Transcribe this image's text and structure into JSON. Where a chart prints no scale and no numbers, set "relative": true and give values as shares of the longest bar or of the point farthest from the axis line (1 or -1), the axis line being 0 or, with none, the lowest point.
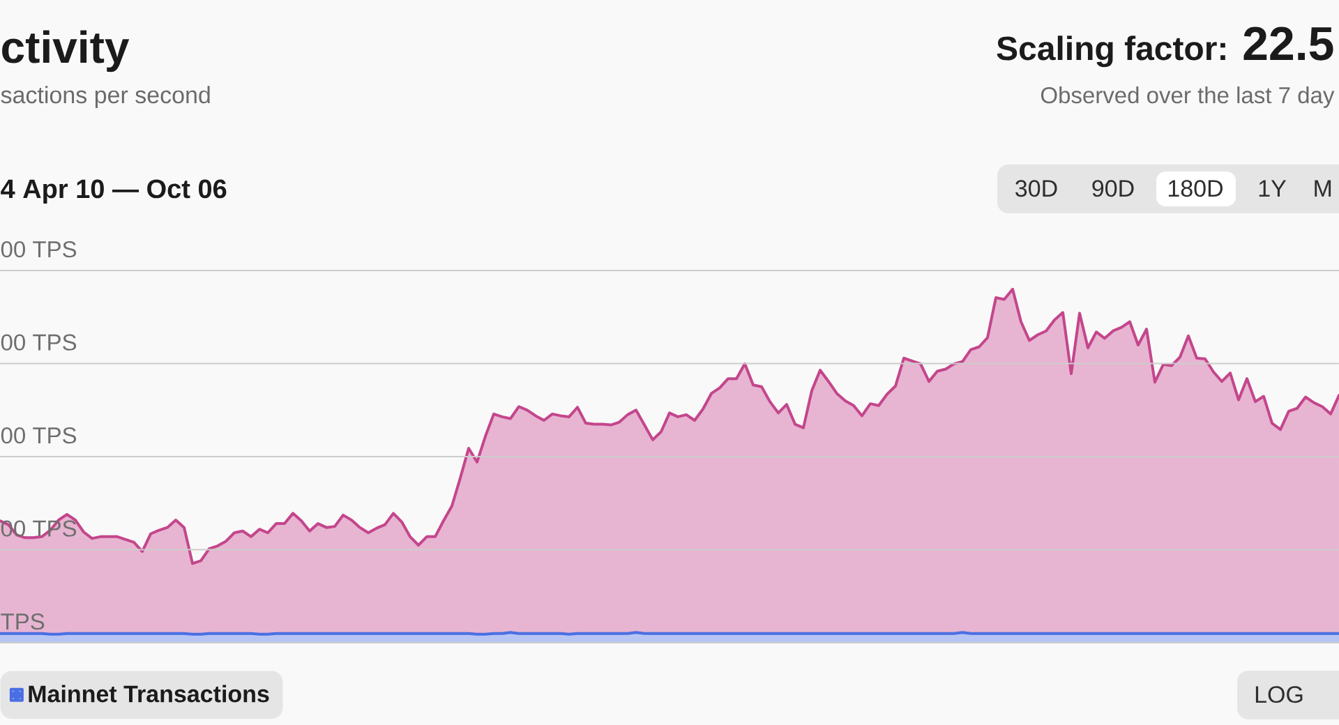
{
  "chart_data": {
    "type": "area",
    "title": "ctivity",
    "subtitle": "sactions per second",
    "annotations": [
      "4 Apr 10 — Oct 06",
      "Scaling factor:",
      "22.5",
      "Observed over the last 7 day",
      "30D",
      "90D",
      "180D",
      "1Y",
      "M",
      "LOG",
      "00 TPS",
      "00 TPS",
      "00 TPS",
      "00 TPS",
      "TPS"
    ],
    "relative": true,
    "categories": [
      null,
      null,
      null,
      null,
      null,
      null,
      null,
      null,
      null,
      null,
      null,
      null,
      null,
      null,
      null,
      null,
      null,
      null,
      null,
      null,
      null,
      null,
      null,
      null,
      null,
      null,
      null,
      null,
      null,
      null,
      null,
      null,
      null,
      null,
      null,
      null,
      null,
      null,
      null,
      null,
      null,
      null,
      null,
      null,
      null,
      null,
      null,
      null,
      null,
      null,
      null,
      null,
      null,
      null,
      null,
      null,
      null,
      null,
      null,
      null,
      null,
      null,
      null,
      null,
      null,
      null,
      null,
      null,
      null,
      null,
      null,
      null,
      null,
      null,
      null,
      null,
      null,
      null,
      null,
      null,
      null,
      null,
      null,
      null,
      null,
      null,
      null,
      null,
      null,
      null,
      null,
      null,
      null,
      null,
      null,
      null,
      null,
      null,
      null,
      null,
      null,
      null,
      null,
      null,
      null,
      null,
      null,
      null,
      null,
      null,
      null,
      null,
      null,
      null,
      null,
      null,
      null,
      null,
      null,
      null,
      null,
      null,
      null,
      null,
      null,
      null,
      null,
      null,
      null,
      null,
      null,
      null,
      null,
      null,
      null,
      null,
      null,
      null,
      null,
      null,
      null,
      null,
      null,
      null,
      null,
      null,
      null,
      null,
      null,
      null,
      null,
      null,
      null,
      null,
      null,
      null,
      null,
      null,
      null,
      null,
      null
    ],
    "series": [
      {
        "color": "#c4468c",
        "values": [
          0.345,
          0.334,
          0.305,
          0.297,
          0.297,
          0.3,
          0.318,
          0.347,
          0.363,
          0.347,
          0.313,
          0.295,
          0.3,
          0.3,
          0.3,
          0.292,
          0.284,
          0.258,
          0.308,
          0.318,
          0.326,
          0.347,
          0.326,
          0.224,
          0.232,
          0.266,
          0.274,
          0.287,
          0.311,
          0.316,
          0.3,
          0.321,
          0.311,
          0.337,
          0.337,
          0.366,
          0.345,
          0.316,
          0.337,
          0.326,
          0.329,
          0.361,
          0.347,
          0.326,
          0.311,
          0.324,
          0.334,
          0.366,
          0.342,
          0.3,
          0.276,
          0.3,
          0.3,
          0.345,
          0.387,
          0.466,
          0.55,
          0.511,
          0.584,
          0.647,
          0.639,
          0.634,
          0.668,
          0.658,
          0.642,
          0.629,
          0.647,
          0.642,
          0.639,
          0.666,
          0.621,
          0.618,
          0.618,
          0.616,
          0.624,
          0.645,
          0.658,
          0.616,
          0.574,
          0.597,
          0.65,
          0.639,
          0.645,
          0.629,
          0.661,
          0.705,
          0.721,
          0.747,
          0.747,
          0.789,
          0.729,
          0.724,
          0.682,
          0.65,
          0.674,
          0.618,
          0.608,
          0.713,
          0.771,
          0.739,
          0.705,
          0.684,
          0.671,
          0.642,
          0.676,
          0.671,
          0.703,
          0.726,
          0.805,
          0.797,
          0.789,
          0.739,
          0.768,
          0.774,
          0.789,
          0.795,
          0.829,
          0.837,
          0.863,
          0.976,
          0.971,
          1,
          0.908,
          0.855,
          0.871,
          0.882,
          0.913,
          0.934,
          0.761,
          0.932,
          0.834,
          0.879,
          0.861,
          0.882,
          0.892,
          0.908,
          0.842,
          0.887,
          0.737,
          0.787,
          0.784,
          0.808,
          0.868,
          0.805,
          0.803,
          0.766,
          0.739,
          0.763,
          0.687,
          0.747,
          0.682,
          0.697,
          0.621,
          0.603,
          0.655,
          0.663,
          0.695,
          0.679,
          0.668,
          0.647,
          0.7
        ]
      },
      {
        "name": "Mainnet Transactions",
        "color": "#4a6fe3",
        "values": [
          0.026,
          0.026,
          0.026,
          0.026,
          0.026,
          0.026,
          0.024,
          0.024,
          0.026,
          0.026,
          0.026,
          0.026,
          0.026,
          0.026,
          0.026,
          0.026,
          0.026,
          0.026,
          0.026,
          0.026,
          0.026,
          0.026,
          0.026,
          0.024,
          0.024,
          0.026,
          0.026,
          0.026,
          0.026,
          0.026,
          0.026,
          0.024,
          0.024,
          0.026,
          0.026,
          0.026,
          0.026,
          0.026,
          0.026,
          0.026,
          0.026,
          0.026,
          0.026,
          0.026,
          0.026,
          0.026,
          0.026,
          0.026,
          0.026,
          0.026,
          0.026,
          0.026,
          0.026,
          0.026,
          0.026,
          0.026,
          0.026,
          0.024,
          0.024,
          0.026,
          0.026,
          0.029,
          0.026,
          0.026,
          0.026,
          0.026,
          0.026,
          0.026,
          0.024,
          0.026,
          0.026,
          0.026,
          0.026,
          0.026,
          0.026,
          0.026,
          0.029,
          0.026,
          0.026,
          0.026,
          0.026,
          0.026,
          0.026,
          0.026,
          0.026,
          0.026,
          0.026,
          0.026,
          0.026,
          0.026,
          0.026,
          0.026,
          0.026,
          0.026,
          0.026,
          0.026,
          0.026,
          0.026,
          0.026,
          0.026,
          0.026,
          0.026,
          0.026,
          0.026,
          0.026,
          0.026,
          0.026,
          0.026,
          0.026,
          0.026,
          0.026,
          0.026,
          0.026,
          0.026,
          0.026,
          0.029,
          0.026,
          0.026,
          0.026,
          0.026,
          0.026,
          0.026,
          0.026,
          0.026,
          0.026,
          0.026,
          0.026,
          0.026,
          0.026,
          0.026,
          0.026,
          0.026,
          0.026,
          0.026,
          0.026,
          0.026,
          0.026,
          0.026,
          0.026,
          0.026,
          0.026,
          0.026,
          0.026,
          0.026,
          0.026,
          0.026,
          0.026,
          0.026,
          0.026,
          0.026,
          0.026,
          0.026,
          0.026,
          0.026,
          0.026,
          0.026,
          0.026,
          0.026,
          0.026,
          0.026,
          0.026
        ]
      }
    ],
    "grid": "y",
    "legend": "bottom left"
  }
}
